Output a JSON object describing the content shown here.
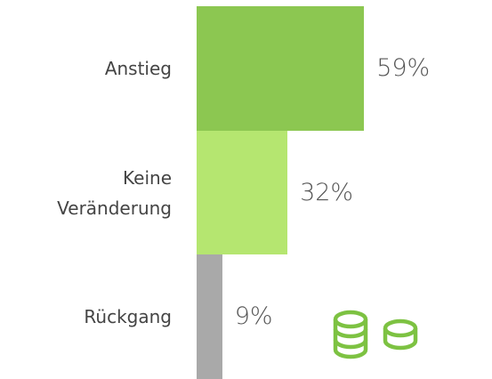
{
  "chart_data": {
    "type": "bar",
    "orientation": "horizontal",
    "categories": [
      "Anstieg",
      "Keine Veränderung",
      "Rückgang"
    ],
    "values": [
      59,
      32,
      9
    ],
    "value_labels": [
      "59%",
      "32%",
      "9%"
    ],
    "colors": [
      "#8cc751",
      "#b5e670",
      "#a9a9a9"
    ]
  }
}
